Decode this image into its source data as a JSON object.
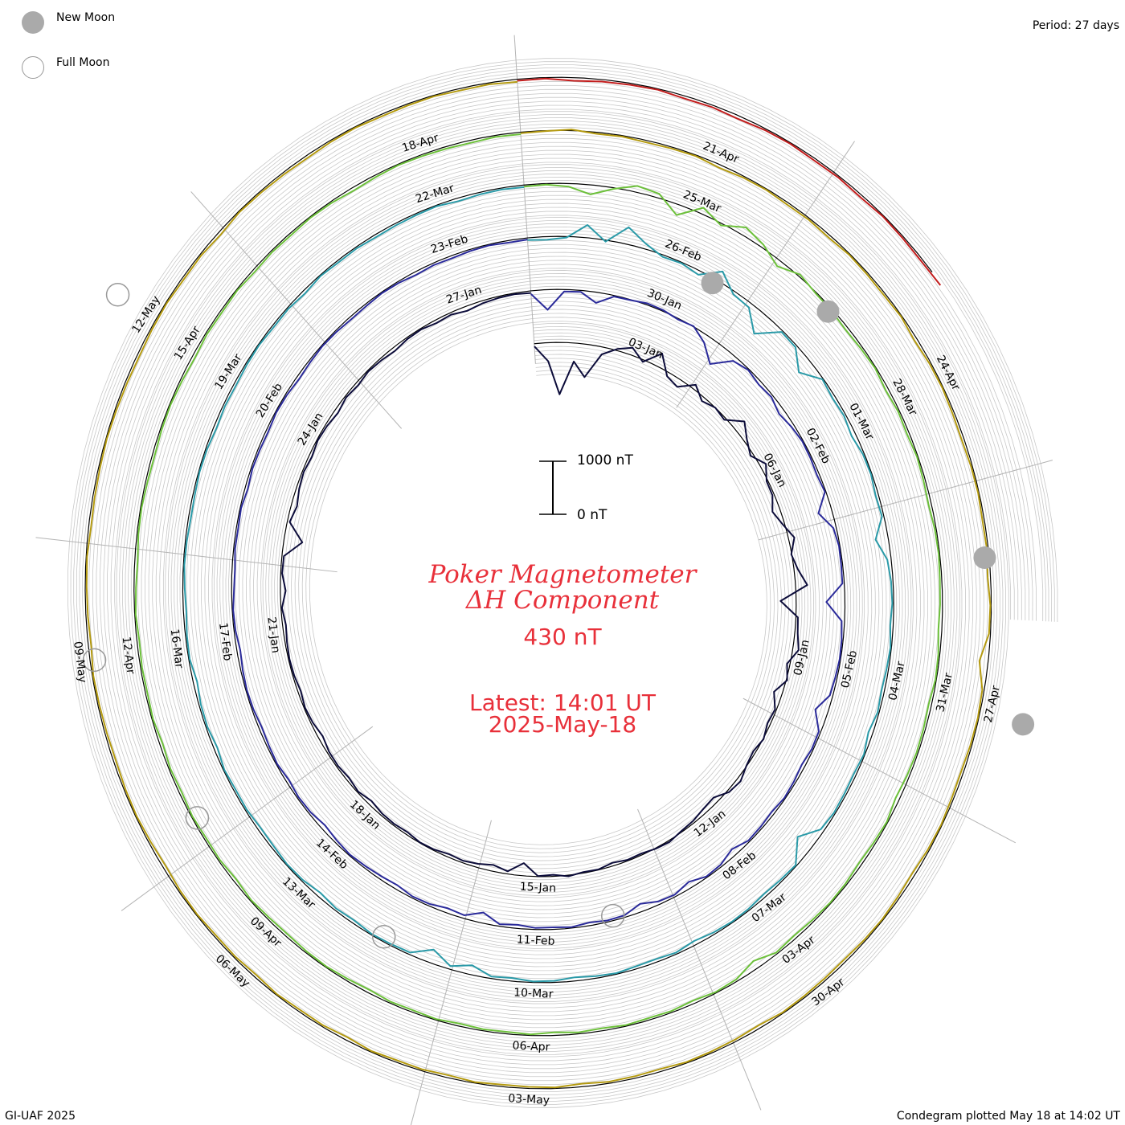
{
  "legend": {
    "new_moon_label": "New Moon",
    "full_moon_label": "Full Moon",
    "new_moon_color": "#aaaaaa",
    "full_moon_color": "#ffffff"
  },
  "period_label": "Period: 27 days",
  "title_line1": "Poker Magnetometer",
  "title_line2": "ΔH Component",
  "current_value": "430 nT",
  "latest_time": "Latest: 14:01 UT",
  "latest_date": "2025-May-18",
  "scale": {
    "top_label": "1000 nT",
    "bottom_label": "0 nT"
  },
  "credit": "GI-UAF 2025",
  "plotted_note": "Condegram plotted May 18 at 14:02 UT",
  "colors": {
    "title": "#e8303a",
    "grid": "#c8c8c8",
    "baseline": "#000000",
    "spokes": "#b4b4b4"
  },
  "chart_data": {
    "type": "line",
    "subtype": "polar spiral condegram",
    "period_days": 27,
    "unit": "nT",
    "start_date": "2025-01-01",
    "end": "2025-05-18 14:01",
    "scale_bar": [
      0,
      1000
    ],
    "baseline_nT": 0,
    "date_labels": [
      {
        "label": "03-Jan",
        "day": 2
      },
      {
        "label": "06-Jan",
        "day": 5
      },
      {
        "label": "09-Jan",
        "day": 8
      },
      {
        "label": "12-Jan",
        "day": 11
      },
      {
        "label": "15-Jan",
        "day": 14
      },
      {
        "label": "18-Jan",
        "day": 17
      },
      {
        "label": "21-Jan",
        "day": 20
      },
      {
        "label": "24-Jan",
        "day": 23
      },
      {
        "label": "27-Jan",
        "day": 26
      },
      {
        "label": "30-Jan",
        "day": 29
      },
      {
        "label": "02-Feb",
        "day": 32
      },
      {
        "label": "05-Feb",
        "day": 35
      },
      {
        "label": "08-Feb",
        "day": 38
      },
      {
        "label": "11-Feb",
        "day": 41
      },
      {
        "label": "14-Feb",
        "day": 44
      },
      {
        "label": "17-Feb",
        "day": 47
      },
      {
        "label": "20-Feb",
        "day": 50
      },
      {
        "label": "23-Feb",
        "day": 53
      },
      {
        "label": "26-Feb",
        "day": 56
      },
      {
        "label": "01-Mar",
        "day": 59
      },
      {
        "label": "04-Mar",
        "day": 62
      },
      {
        "label": "07-Mar",
        "day": 65
      },
      {
        "label": "10-Mar",
        "day": 68
      },
      {
        "label": "13-Mar",
        "day": 71
      },
      {
        "label": "16-Mar",
        "day": 74
      },
      {
        "label": "19-Mar",
        "day": 77
      },
      {
        "label": "22-Mar",
        "day": 80
      },
      {
        "label": "25-Mar",
        "day": 83
      },
      {
        "label": "28-Mar",
        "day": 86
      },
      {
        "label": "31-Mar",
        "day": 89
      },
      {
        "label": "03-Apr",
        "day": 92
      },
      {
        "label": "06-Apr",
        "day": 95
      },
      {
        "label": "09-Apr",
        "day": 98
      },
      {
        "label": "12-Apr",
        "day": 101
      },
      {
        "label": "15-Apr",
        "day": 104
      },
      {
        "label": "18-Apr",
        "day": 107
      },
      {
        "label": "21-Apr",
        "day": 110
      },
      {
        "label": "24-Apr",
        "day": 113
      },
      {
        "label": "27-Apr",
        "day": 116
      },
      {
        "label": "30-Apr",
        "day": 119
      },
      {
        "label": "03-May",
        "day": 122
      },
      {
        "label": "06-May",
        "day": 125
      },
      {
        "label": "09-May",
        "day": 128
      },
      {
        "label": "12-May",
        "day": 131
      }
    ],
    "new_moons": [
      29.5,
      57.8,
      87.7,
      116.1
    ],
    "full_moons": [
      12.9,
      42.9,
      72.3,
      101.0,
      131.0
    ],
    "series": [
      {
        "rotation": 1,
        "start_day": 0,
        "color": "#0c0c3a",
        "values": [
          -50,
          -350,
          -980,
          -350,
          -620,
          -140,
          30,
          140,
          -40,
          260,
          -80,
          -150,
          90,
          -80,
          0,
          -40,
          240,
          60,
          -60,
          120,
          -30,
          -40,
          -160,
          -40,
          120,
          -10,
          80,
          240,
          -320,
          40,
          60,
          120,
          -60,
          20,
          -170,
          -30,
          -60,
          10,
          -50,
          -10,
          80,
          40,
          -110,
          -90,
          -40,
          -20,
          30,
          10,
          -30,
          -20,
          -60,
          -10,
          -20,
          20,
          -30,
          -10,
          -240,
          -50,
          -120,
          -70,
          -40,
          -60,
          -20,
          -10,
          -50,
          -30,
          -40,
          -80,
          -20,
          -60,
          -30,
          -40,
          -90,
          -40,
          -20,
          -60,
          -30,
          -20,
          -40,
          -70,
          -20,
          -110,
          -30,
          -40,
          -380,
          -50,
          -120,
          -60,
          -30,
          -60,
          -20,
          -40,
          -80,
          -30,
          -60,
          -20,
          -40,
          -70,
          -30,
          -20,
          -60,
          -40,
          -90,
          -50,
          -30,
          -20,
          -40
        ]
      },
      {
        "rotation": 2,
        "start_day": 27,
        "color": "#2a2a9a",
        "values": [
          -60,
          -380,
          -40,
          -30,
          -200,
          -20,
          -10,
          30,
          20,
          -20,
          10,
          -150,
          -420,
          -90,
          -20,
          -70,
          -40,
          -120,
          -60,
          -20,
          -30,
          -50,
          -20,
          -280,
          -60,
          -20,
          -30,
          -40,
          -380,
          -60,
          -30,
          -20,
          -40,
          -60,
          -260,
          -40,
          -30,
          -70,
          -40,
          -20,
          -60,
          -40,
          -30,
          -130,
          -40,
          -20,
          -120,
          -40,
          -60,
          -150,
          -40,
          -30,
          -60,
          -20,
          -40,
          -30,
          -70,
          -40,
          -200,
          -60,
          -90,
          -40,
          -30,
          -80,
          -60,
          -40,
          -20,
          -50,
          -90,
          -40,
          -30,
          -60,
          -20,
          -40,
          -60,
          -30,
          -20,
          -40,
          -70,
          -30,
          -20,
          -50,
          -60,
          -30,
          -40,
          -20,
          -60,
          -30,
          -40,
          -50,
          -20,
          -30,
          -60,
          -40,
          -20,
          -30,
          -50,
          -40,
          -20,
          -30,
          -60,
          -40,
          -50,
          -30,
          -20,
          -40,
          -30
        ]
      },
      {
        "rotation": 3,
        "start_day": 54,
        "color": "#2a9aa8",
        "values": [
          -40,
          -60,
          -20,
          240,
          -30,
          320,
          100,
          -40,
          -20,
          -80,
          200,
          -60,
          -90,
          -420,
          -30,
          -40,
          -310,
          -20,
          -60,
          -40,
          -90,
          -30,
          -20,
          -60,
          -40,
          -260,
          -80,
          -40,
          -30,
          -60,
          -20,
          -40,
          -60,
          -30,
          -90,
          -20,
          -50,
          -40,
          -30,
          -70,
          -350,
          -20,
          -40,
          -60,
          -30,
          -20,
          -40,
          -80,
          -30,
          -60,
          -50,
          -20,
          -40,
          -70,
          -30,
          -20,
          -60,
          -40,
          -180,
          -60,
          -260,
          -40,
          -30,
          -20,
          -60,
          -40,
          -80,
          -30,
          -20,
          -50,
          -60,
          -30,
          -40,
          -20,
          -70,
          -30,
          -40,
          -80,
          -20,
          -30,
          -60,
          -40,
          -20,
          -30,
          -50,
          -40,
          -20,
          -30,
          -60,
          -40,
          -50,
          -30,
          -20,
          -40,
          -30,
          -60,
          -20,
          -40,
          -30,
          -50,
          -40,
          -30,
          -20,
          -60,
          -40,
          -30,
          -40
        ]
      },
      {
        "rotation": 4,
        "start_day": 81,
        "color": "#6cc03a",
        "values": [
          -30,
          -20,
          -60,
          -180,
          -20,
          120,
          80,
          -200,
          120,
          -40,
          160,
          60,
          -120,
          40,
          -20,
          -30,
          -60,
          -40,
          -20,
          -60,
          -30,
          -50,
          -20,
          -40,
          -60,
          -30,
          -20,
          -40,
          -50,
          -70,
          -30,
          -20,
          -60,
          -40,
          -30,
          -50,
          -80,
          -20,
          -40,
          -60,
          -30,
          -20,
          -40,
          -60,
          -30,
          -160,
          -40,
          -20,
          -60,
          -30,
          -40,
          -20,
          -50,
          -30,
          -60,
          -20,
          -40,
          -30,
          -50,
          -20,
          -40,
          -30,
          -60,
          -40,
          -20,
          -30,
          -50,
          -40,
          -20,
          -60,
          -30,
          -40,
          -20,
          -50,
          -30,
          -60,
          -20,
          -40,
          -30,
          -50,
          -20,
          -40,
          -60,
          -30,
          -20,
          -40,
          -50,
          -30,
          -20,
          -40,
          -60,
          -30,
          -40,
          -20,
          -50,
          -30,
          -40,
          -20,
          -30,
          -60,
          -40,
          -20,
          -30,
          -40,
          -50,
          -30,
          -40
        ]
      },
      {
        "rotation": 5,
        "start_day": 108,
        "color": "#b49a10",
        "values": [
          -20,
          -10,
          20,
          -30,
          -20,
          -40,
          -30,
          -20,
          -60,
          -30,
          -20,
          -40,
          -30,
          -50,
          -20,
          -30,
          -40,
          -20,
          -60,
          -30,
          -20,
          -40,
          -50,
          -30,
          -20,
          -40,
          -30,
          -60,
          -20,
          -30,
          -180,
          -40,
          -20,
          -30,
          -50,
          -40,
          -20,
          -30,
          -60,
          -40,
          -20,
          -30,
          -50,
          -40,
          -30,
          -20,
          -60,
          -40,
          -30,
          -20,
          -50,
          -40,
          -30,
          -60,
          -20,
          -30,
          -40,
          -20,
          -50,
          -30,
          -40,
          -20,
          -60,
          -30,
          -40,
          -20,
          -50,
          -30,
          -40,
          -20,
          -30,
          -60,
          -40,
          -20,
          -30,
          -50,
          -40,
          -30,
          -20,
          -60,
          -40,
          -30,
          -20,
          -50,
          -40,
          -30,
          -20,
          -30,
          -40,
          -50,
          -30,
          -20,
          -40,
          -30,
          -60,
          -20,
          -30,
          -40,
          -50,
          -30,
          -20,
          -40,
          -30,
          -20,
          -40,
          -30,
          -50
        ]
      },
      {
        "rotation": 6,
        "start_day": 135,
        "color": "#c21d1d",
        "values": [
          -30,
          -20,
          -60,
          -40,
          -30,
          -20,
          -50,
          -40,
          -60,
          -30,
          -20,
          -40,
          -30,
          -50,
          -20,
          -30,
          -40,
          -20
        ]
      }
    ]
  }
}
